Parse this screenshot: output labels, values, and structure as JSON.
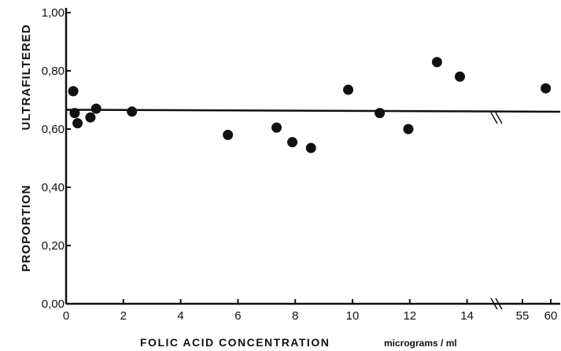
{
  "chart_data": {
    "type": "scatter",
    "title": "",
    "xlabel": "FOLIC ACID CONCENTRATION",
    "xlabel_unit": "micrograms / ml",
    "ylabel_upper": "ULTRAFILTERED",
    "ylabel_lower": "PROPORTION",
    "xlim": [
      0,
      15
    ],
    "ylim": [
      0,
      1.0
    ],
    "x_ticks": [
      {
        "value": 0,
        "label": "0"
      },
      {
        "value": 2,
        "label": "2"
      },
      {
        "value": 4,
        "label": "4"
      },
      {
        "value": 6,
        "label": "6"
      },
      {
        "value": 8,
        "label": "8"
      },
      {
        "value": 10,
        "label": "10"
      },
      {
        "value": 12,
        "label": "12"
      },
      {
        "value": 14,
        "label": "14"
      }
    ],
    "x_broken_ticks": [
      {
        "label": "55"
      },
      {
        "label": "60"
      }
    ],
    "y_ticks": [
      {
        "value": 0.0,
        "label": "0,00"
      },
      {
        "value": 0.2,
        "label": "0,20"
      },
      {
        "value": 0.4,
        "label": "0,40"
      },
      {
        "value": 0.6,
        "label": "0,60"
      },
      {
        "value": 0.8,
        "label": "0,80"
      },
      {
        "value": 1.0,
        "label": "1,00"
      }
    ],
    "axis_break": {
      "after_x": 14,
      "resumes_at_x": 55
    },
    "grid": false,
    "legend": "none",
    "mean_line": {
      "y": 0.665
    },
    "points": [
      {
        "x": 0.25,
        "y": 0.73
      },
      {
        "x": 0.3,
        "y": 0.655
      },
      {
        "x": 0.4,
        "y": 0.62
      },
      {
        "x": 0.85,
        "y": 0.64
      },
      {
        "x": 1.05,
        "y": 0.67
      },
      {
        "x": 2.3,
        "y": 0.66
      },
      {
        "x": 5.65,
        "y": 0.58
      },
      {
        "x": 7.35,
        "y": 0.605
      },
      {
        "x": 7.9,
        "y": 0.555
      },
      {
        "x": 8.55,
        "y": 0.535
      },
      {
        "x": 9.85,
        "y": 0.735
      },
      {
        "x": 10.95,
        "y": 0.655
      },
      {
        "x": 11.95,
        "y": 0.6
      },
      {
        "x": 12.95,
        "y": 0.83
      },
      {
        "x": 13.75,
        "y": 0.78
      },
      {
        "x": 58.7,
        "y": 0.74
      }
    ]
  }
}
